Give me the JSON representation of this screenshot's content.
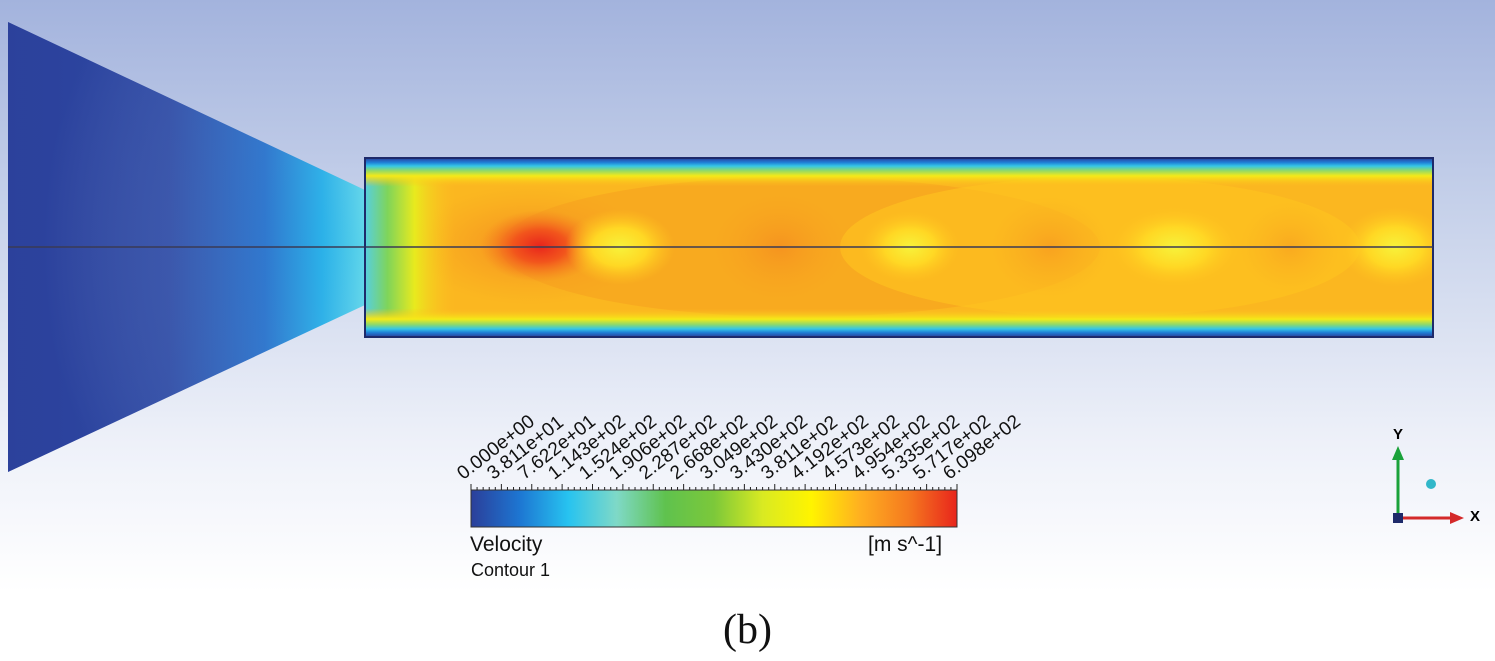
{
  "legend": {
    "variable": "Velocity",
    "contour_name": "Contour 1",
    "unit": "[m s^-1]",
    "tick_labels": [
      "0.000e+00",
      "3.811e+01",
      "7.622e+01",
      "1.143e+02",
      "1.524e+02",
      "1.906e+02",
      "2.287e+02",
      "2.668e+02",
      "3.049e+02",
      "3.430e+02",
      "3.811e+02",
      "4.192e+02",
      "4.573e+02",
      "4.954e+02",
      "5.335e+02",
      "5.717e+02",
      "6.098e+02"
    ],
    "colormap": [
      "#2b3f9a",
      "#1d76d2",
      "#27c3f0",
      "#7fd9c7",
      "#5fc24e",
      "#7cc83a",
      "#d9ea22",
      "#fff400",
      "#ffb020",
      "#f57a1f",
      "#e8251c"
    ]
  },
  "triad": {
    "y_label": "Y",
    "x_label": "X",
    "y_color": "#1aa23a",
    "x_color": "#d42a2a"
  },
  "figure_label": "(b)",
  "colors": {
    "background_top": "#a3b3dd",
    "min_velocity": "#2b3f9a",
    "max_velocity": "#e8251c"
  }
}
